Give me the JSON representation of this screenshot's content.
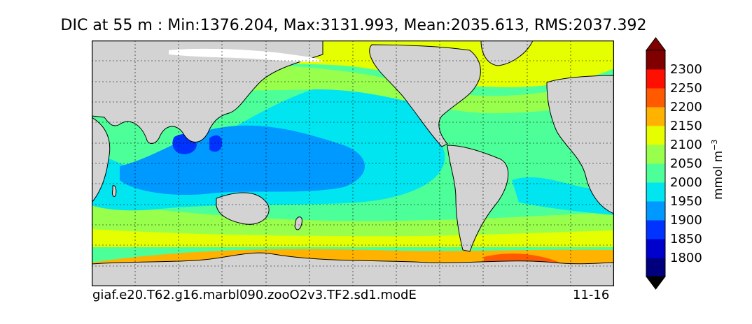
{
  "figure": {
    "title": "DIC at 55 m : Min:1376.204, Max:3131.993, Mean:2035.613, RMS:2037.392",
    "case_name": "giaf.e20.T62.g16.marbl090.zooO2v3.TF2.sd1.modE",
    "date_range": "11-16"
  },
  "map": {
    "projection": "cylindrical",
    "land_color": "#d3d3d3",
    "grid": true,
    "variable": "DIC",
    "depth": "55 m"
  },
  "colorbar": {
    "units": "mmol m",
    "units_exponent": "−3",
    "ticks": [
      "2300",
      "2250",
      "2200",
      "2150",
      "2100",
      "2050",
      "2000",
      "1950",
      "1900",
      "1850",
      "1800"
    ],
    "levels": [
      {
        "color": "#00007f"
      },
      {
        "color": "#0000cc"
      },
      {
        "color": "#0033ff"
      },
      {
        "color": "#0099ff"
      },
      {
        "color": "#00e5f0"
      },
      {
        "color": "#4dff99"
      },
      {
        "color": "#99ff4d"
      },
      {
        "color": "#e5ff00"
      },
      {
        "color": "#ffb300"
      },
      {
        "color": "#ff5a00"
      },
      {
        "color": "#ff0f00"
      },
      {
        "color": "#800000"
      }
    ],
    "extend": "both"
  },
  "chart_data": {
    "type": "heatmap",
    "title": "DIC at 55 m : Min:1376.204, Max:3131.993, Mean:2035.613, RMS:2037.392",
    "stats": {
      "min": 1376.204,
      "max": 3131.993,
      "mean": 2035.613,
      "rms": 2037.392
    },
    "contour_levels": [
      1800,
      1850,
      1900,
      1950,
      2000,
      2050,
      2100,
      2150,
      2200,
      2250,
      2300
    ],
    "colorbar_label": "mmol m^-3"
  }
}
